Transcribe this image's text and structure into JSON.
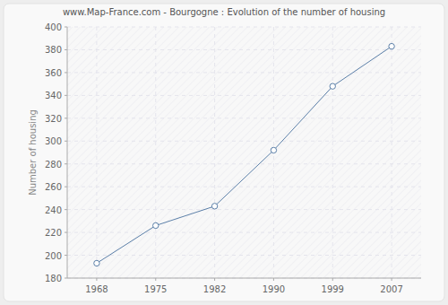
{
  "chart_data": {
    "type": "line",
    "title": "www.Map-France.com - Bourgogne : Evolution of the number of housing",
    "y_label": "Number of housing",
    "categories": [
      "1968",
      "1975",
      "1982",
      "1990",
      "1999",
      "2007"
    ],
    "values": [
      193,
      226,
      243,
      292,
      348,
      383
    ],
    "color": "#5b7fa8",
    "ylim": [
      180,
      400
    ],
    "yticks": [
      180,
      200,
      220,
      240,
      260,
      280,
      300,
      320,
      340,
      360,
      380,
      400
    ],
    "grid": true,
    "marker": "circle"
  }
}
